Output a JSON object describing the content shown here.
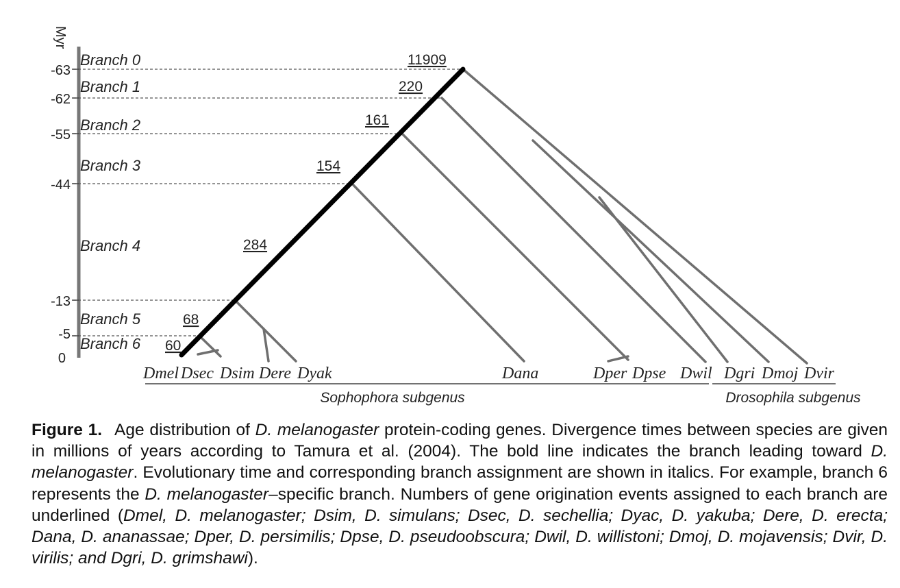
{
  "axis": {
    "unit_label": "Myr",
    "ticks": [
      {
        "label": "-63",
        "value": -63
      },
      {
        "label": "-62",
        "value": -62
      },
      {
        "label": "-55",
        "value": -55
      },
      {
        "label": "-44",
        "value": -44
      },
      {
        "label": "-13",
        "value": -13
      },
      {
        "label": "-5",
        "value": -5
      },
      {
        "label": "0",
        "value": 0
      }
    ]
  },
  "branches": [
    {
      "label": "Branch 0",
      "count": "11909"
    },
    {
      "label": "Branch 1",
      "count": "220"
    },
    {
      "label": "Branch 2",
      "count": "161"
    },
    {
      "label": "Branch 3",
      "count": "154"
    },
    {
      "label": "Branch 4",
      "count": "284"
    },
    {
      "label": "Branch 5",
      "count": "68"
    },
    {
      "label": "Branch 6",
      "count": "60"
    }
  ],
  "species": [
    "Dmel",
    "Dsec",
    "Dsim",
    "Dere",
    "Dyak",
    "Dana",
    "Dper",
    "Dpse",
    "Dwil",
    "Dgri",
    "Dmoj",
    "Dvir"
  ],
  "subgenera": {
    "sophophora": "Sophophora subgenus",
    "drosophila": "Drosophila subgenus"
  },
  "caption": {
    "label": "Figure 1.",
    "segments": [
      {
        "t": "Age distribution of ",
        "i": false
      },
      {
        "t": "D. melanogaster",
        "i": true
      },
      {
        "t": " protein-coding genes. Divergence times between species are given in millions of years according to Tamura et al. (2004). The bold line indicates the branch leading toward ",
        "i": false
      },
      {
        "t": "D. melanogaster",
        "i": true
      },
      {
        "t": ". Evolutionary time and corresponding branch assignment are shown in italics. For example, branch 6 represents the ",
        "i": false
      },
      {
        "t": "D. melanogaster",
        "i": true
      },
      {
        "t": "–specific branch. Numbers of gene origination events assigned to each branch are underlined (",
        "i": false
      },
      {
        "t": "Dmel, D. melanogaster; Dsim, D. simulans; Dsec, D. sechellia; Dyac, D. yakuba; Dere, D. erecta; Dana, D. ananassae; Dper, D. persimilis; Dpse, D. pseudoobscura; Dwil, D. willistoni; Dmoj, D. mojavensis; Dvir, D. virilis; and Dgri, D. grimshawi",
        "i": true
      },
      {
        "t": ").",
        "i": false
      }
    ]
  }
}
